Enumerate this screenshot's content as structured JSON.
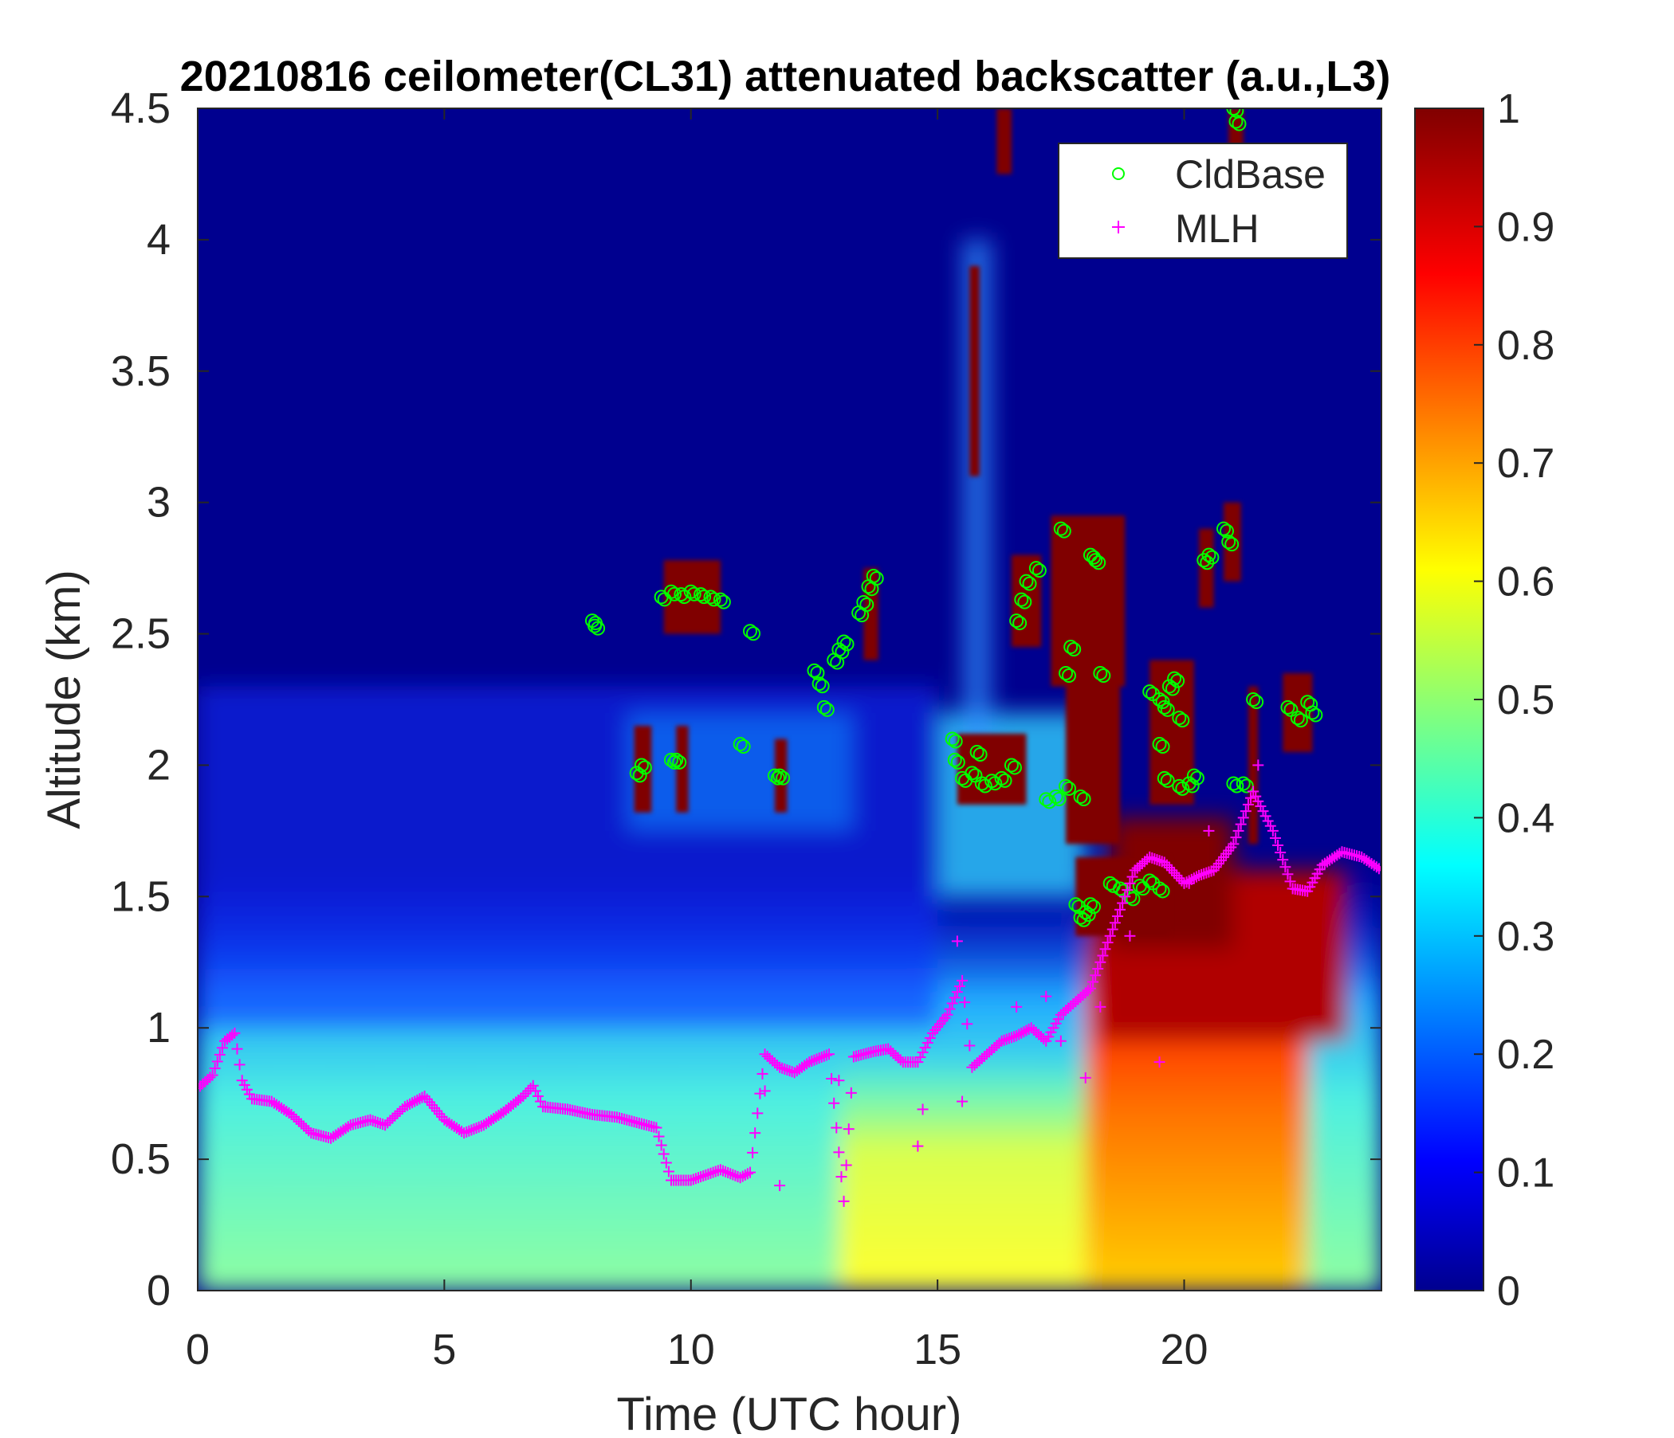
{
  "chart_data": {
    "type": "heatmap",
    "title": "20210816 ceilometer(CL31) attenuated backscatter (a.u.,L3)",
    "xlabel": "Time (UTC hour)",
    "ylabel": "Altitude (km)",
    "xlim": [
      0,
      24
    ],
    "ylim": [
      0,
      4.5
    ],
    "x_ticks": [
      "0",
      "5",
      "10",
      "15",
      "20"
    ],
    "y_ticks": [
      "0",
      "0.5",
      "1",
      "1.5",
      "2",
      "2.5",
      "3",
      "3.5",
      "4",
      "4.5"
    ],
    "colorbar": {
      "colormap": "jet",
      "range": [
        0,
        1
      ],
      "ticks": [
        "0",
        "0.1",
        "0.2",
        "0.3",
        "0.4",
        "0.5",
        "0.6",
        "0.7",
        "0.8",
        "0.9",
        "1"
      ]
    },
    "legend": {
      "position": "top-right",
      "entries": [
        {
          "label": "CldBase",
          "marker": "circle",
          "color": "#00ff00"
        },
        {
          "label": "MLH",
          "marker": "plus",
          "color": "#ff00ff"
        }
      ]
    },
    "mlh_points": [
      [
        0.0,
        0.77
      ],
      [
        0.3,
        0.82
      ],
      [
        0.55,
        0.95
      ],
      [
        0.75,
        0.98
      ],
      [
        0.9,
        0.8
      ],
      [
        1.1,
        0.73
      ],
      [
        1.5,
        0.72
      ],
      [
        1.9,
        0.67
      ],
      [
        2.3,
        0.6
      ],
      [
        2.7,
        0.58
      ],
      [
        3.1,
        0.63
      ],
      [
        3.5,
        0.65
      ],
      [
        3.8,
        0.63
      ],
      [
        4.2,
        0.7
      ],
      [
        4.6,
        0.74
      ],
      [
        5.0,
        0.65
      ],
      [
        5.4,
        0.6
      ],
      [
        5.8,
        0.63
      ],
      [
        6.2,
        0.68
      ],
      [
        6.6,
        0.74
      ],
      [
        6.8,
        0.78
      ],
      [
        7.0,
        0.7
      ],
      [
        7.5,
        0.69
      ],
      [
        8.0,
        0.67
      ],
      [
        8.5,
        0.66
      ],
      [
        8.9,
        0.64
      ],
      [
        9.3,
        0.62
      ],
      [
        9.6,
        0.42
      ],
      [
        10.0,
        0.42
      ],
      [
        10.3,
        0.44
      ],
      [
        10.6,
        0.46
      ],
      [
        11.0,
        0.43
      ],
      [
        11.2,
        0.45
      ],
      [
        11.5,
        0.9
      ],
      [
        11.8,
        0.85
      ],
      [
        12.1,
        0.83
      ],
      [
        12.4,
        0.87
      ],
      [
        12.8,
        0.9
      ],
      [
        13.1,
        0.34
      ],
      [
        13.3,
        0.89
      ],
      [
        13.7,
        0.91
      ],
      [
        14.0,
        0.92
      ],
      [
        14.3,
        0.87
      ],
      [
        14.6,
        0.87
      ],
      [
        14.9,
        0.98
      ],
      [
        15.2,
        1.05
      ],
      [
        15.5,
        1.18
      ],
      [
        15.7,
        0.85
      ],
      [
        16.0,
        0.9
      ],
      [
        16.3,
        0.95
      ],
      [
        16.6,
        0.97
      ],
      [
        16.9,
        1.0
      ],
      [
        17.2,
        0.95
      ],
      [
        17.5,
        1.05
      ],
      [
        17.8,
        1.1
      ],
      [
        18.1,
        1.15
      ],
      [
        18.4,
        1.3
      ],
      [
        18.7,
        1.45
      ],
      [
        19.0,
        1.6
      ],
      [
        19.3,
        1.65
      ],
      [
        19.6,
        1.63
      ],
      [
        20.0,
        1.55
      ],
      [
        20.3,
        1.58
      ],
      [
        20.6,
        1.6
      ],
      [
        21.0,
        1.7
      ],
      [
        21.4,
        1.9
      ],
      [
        21.8,
        1.75
      ],
      [
        22.2,
        1.53
      ],
      [
        22.5,
        1.52
      ],
      [
        22.8,
        1.62
      ],
      [
        23.2,
        1.67
      ],
      [
        23.6,
        1.65
      ],
      [
        24.0,
        1.6
      ]
    ],
    "mlh_scatter": [
      [
        11.5,
        0.76
      ],
      [
        11.8,
        0.4
      ],
      [
        13.0,
        0.8
      ],
      [
        14.6,
        0.55
      ],
      [
        14.7,
        0.69
      ],
      [
        15.4,
        1.33
      ],
      [
        15.5,
        0.72
      ],
      [
        16.6,
        1.08
      ],
      [
        17.2,
        1.12
      ],
      [
        17.5,
        0.95
      ],
      [
        18.0,
        0.81
      ],
      [
        18.3,
        1.08
      ],
      [
        19.5,
        0.87
      ],
      [
        20.1,
        1.55
      ],
      [
        21.5,
        2.0
      ],
      [
        18.9,
        1.35
      ],
      [
        20.5,
        1.75
      ]
    ],
    "cloud_base_points": [
      [
        8.0,
        2.55
      ],
      [
        8.05,
        2.53
      ],
      [
        8.9,
        1.97
      ],
      [
        9.0,
        2.0
      ],
      [
        9.6,
        2.02
      ],
      [
        9.7,
        2.02
      ],
      [
        9.4,
        2.64
      ],
      [
        9.6,
        2.66
      ],
      [
        9.8,
        2.65
      ],
      [
        10.0,
        2.66
      ],
      [
        10.2,
        2.65
      ],
      [
        10.4,
        2.64
      ],
      [
        10.6,
        2.63
      ],
      [
        11.2,
        2.51
      ],
      [
        11.0,
        2.08
      ],
      [
        11.7,
        1.96
      ],
      [
        11.8,
        1.96
      ],
      [
        12.5,
        2.36
      ],
      [
        12.6,
        2.31
      ],
      [
        12.7,
        2.22
      ],
      [
        12.9,
        2.4
      ],
      [
        13.0,
        2.44
      ],
      [
        13.1,
        2.47
      ],
      [
        13.4,
        2.58
      ],
      [
        13.5,
        2.62
      ],
      [
        13.6,
        2.68
      ],
      [
        13.7,
        2.72
      ],
      [
        15.3,
        2.1
      ],
      [
        15.35,
        2.02
      ],
      [
        15.5,
        1.95
      ],
      [
        15.7,
        1.97
      ],
      [
        15.8,
        2.05
      ],
      [
        15.9,
        1.93
      ],
      [
        16.1,
        1.94
      ],
      [
        16.3,
        1.95
      ],
      [
        16.5,
        2.0
      ],
      [
        16.6,
        2.55
      ],
      [
        16.7,
        2.63
      ],
      [
        16.8,
        2.7
      ],
      [
        17.0,
        2.75
      ],
      [
        17.2,
        1.87
      ],
      [
        17.4,
        1.88
      ],
      [
        17.6,
        1.92
      ],
      [
        17.5,
        2.9
      ],
      [
        17.7,
        2.45
      ],
      [
        17.6,
        2.35
      ],
      [
        17.9,
        1.88
      ],
      [
        18.1,
        2.8
      ],
      [
        18.2,
        2.78
      ],
      [
        18.3,
        2.35
      ],
      [
        17.8,
        1.47
      ],
      [
        17.9,
        1.42
      ],
      [
        18.0,
        1.44
      ],
      [
        18.1,
        1.47
      ],
      [
        18.5,
        1.55
      ],
      [
        18.7,
        1.53
      ],
      [
        18.9,
        1.5
      ],
      [
        19.1,
        1.54
      ],
      [
        19.3,
        1.56
      ],
      [
        19.5,
        1.53
      ],
      [
        19.3,
        2.28
      ],
      [
        19.5,
        2.25
      ],
      [
        19.6,
        2.22
      ],
      [
        19.7,
        2.3
      ],
      [
        19.8,
        2.33
      ],
      [
        19.9,
        2.18
      ],
      [
        19.5,
        2.08
      ],
      [
        19.6,
        1.95
      ],
      [
        19.9,
        1.92
      ],
      [
        20.1,
        1.93
      ],
      [
        20.2,
        1.96
      ],
      [
        20.4,
        2.78
      ],
      [
        20.5,
        2.8
      ],
      [
        20.8,
        2.9
      ],
      [
        20.9,
        2.85
      ],
      [
        21.0,
        4.5
      ],
      [
        21.05,
        4.45
      ],
      [
        21.0,
        1.93
      ],
      [
        21.2,
        1.93
      ],
      [
        21.4,
        2.25
      ],
      [
        22.1,
        2.22
      ],
      [
        22.3,
        2.18
      ],
      [
        22.5,
        2.24
      ],
      [
        22.6,
        2.2
      ]
    ]
  }
}
